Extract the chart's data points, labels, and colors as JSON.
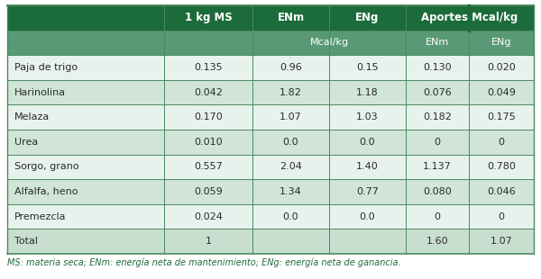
{
  "rows": [
    [
      "Paja de trigo",
      "0.135",
      "0.96",
      "0.15",
      "0.130",
      "0.020"
    ],
    [
      "Harinolina",
      "0.042",
      "1.82",
      "1.18",
      "0.076",
      "0.049"
    ],
    [
      "Melaza",
      "0.170",
      "1.07",
      "1.03",
      "0.182",
      "0.175"
    ],
    [
      "Urea",
      "0.010",
      "0.0",
      "0.0",
      "0",
      "0"
    ],
    [
      "Sorgo, grano",
      "0.557",
      "2.04",
      "1.40",
      "1.137",
      "0.780"
    ],
    [
      "Alfalfa, heno",
      "0.059",
      "1.34",
      "0.77",
      "0.080",
      "0.046"
    ],
    [
      "Premezcla",
      "0.024",
      "0.0",
      "0.0",
      "0",
      "0"
    ],
    [
      "Total",
      "1",
      "",
      "",
      "1.60",
      "1.07"
    ]
  ],
  "header_bg": "#1c6b3a",
  "header_text": "#ffffff",
  "subheader_bg": "#5a9975",
  "subheader_text": "#ffffff",
  "row_bg_light": "#e8f2ec",
  "row_bg_dark": "#d0e5d8",
  "total_bg": "#c8dfd0",
  "border_color": "#4a8a60",
  "text_color": "#2a2a2a",
  "footer_text": "MS: materia seca; ENm: energía neta de mantenimiento; ENg: energía neta de ganancia.",
  "figsize": [
    6.0,
    3.1
  ],
  "dpi": 100
}
